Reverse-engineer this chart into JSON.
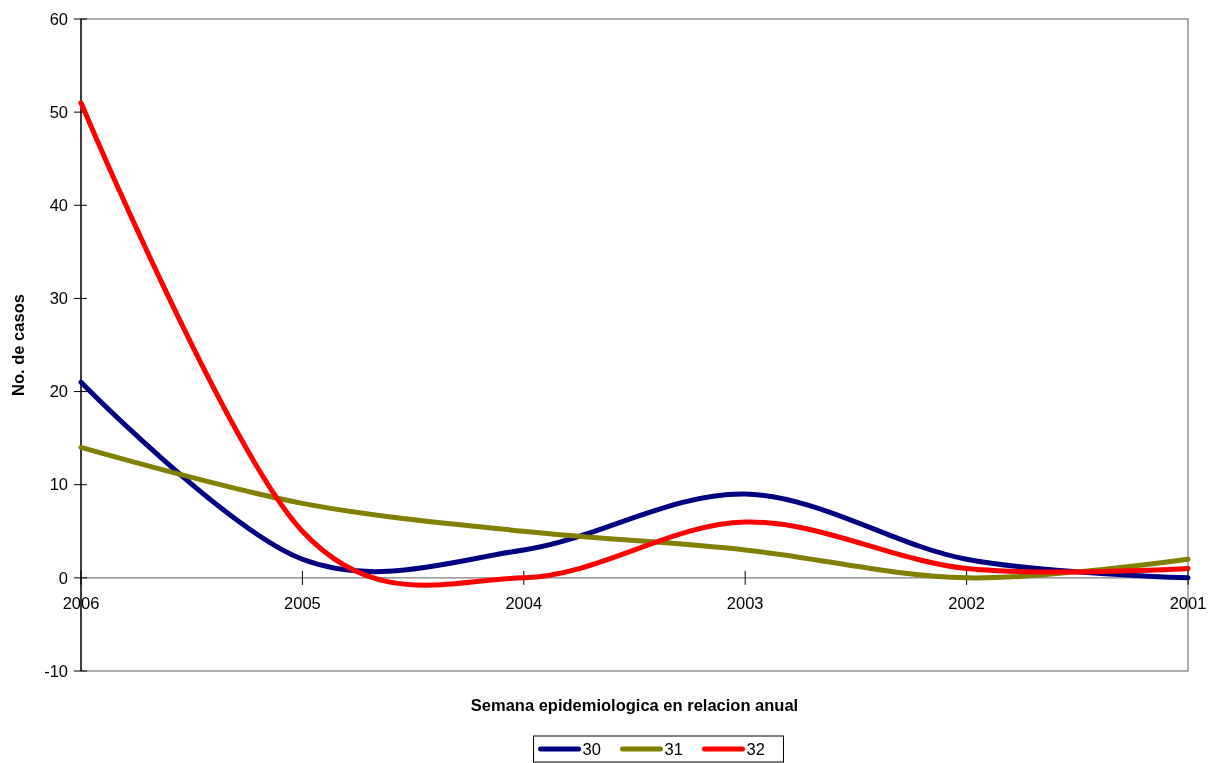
{
  "chart_data": {
    "type": "line",
    "categories": [
      "2006",
      "2005",
      "2004",
      "2003",
      "2002",
      "2001"
    ],
    "series": [
      {
        "name": "30",
        "color": "#000080",
        "values": [
          21,
          2,
          3,
          9,
          2,
          0
        ]
      },
      {
        "name": "31",
        "color": "#808000",
        "values": [
          14,
          8,
          5,
          3,
          0,
          2
        ]
      },
      {
        "name": "32",
        "color": "#ff0000",
        "values": [
          51,
          5,
          0,
          6,
          1,
          1
        ]
      }
    ],
    "xlabel": "Semana epidemiologica en relacion anual",
    "ylabel": "No. de casos",
    "ylim": [
      -10,
      60
    ],
    "yticks": [
      -10,
      0,
      10,
      20,
      30,
      40,
      50,
      60
    ],
    "legend": "bottom"
  }
}
